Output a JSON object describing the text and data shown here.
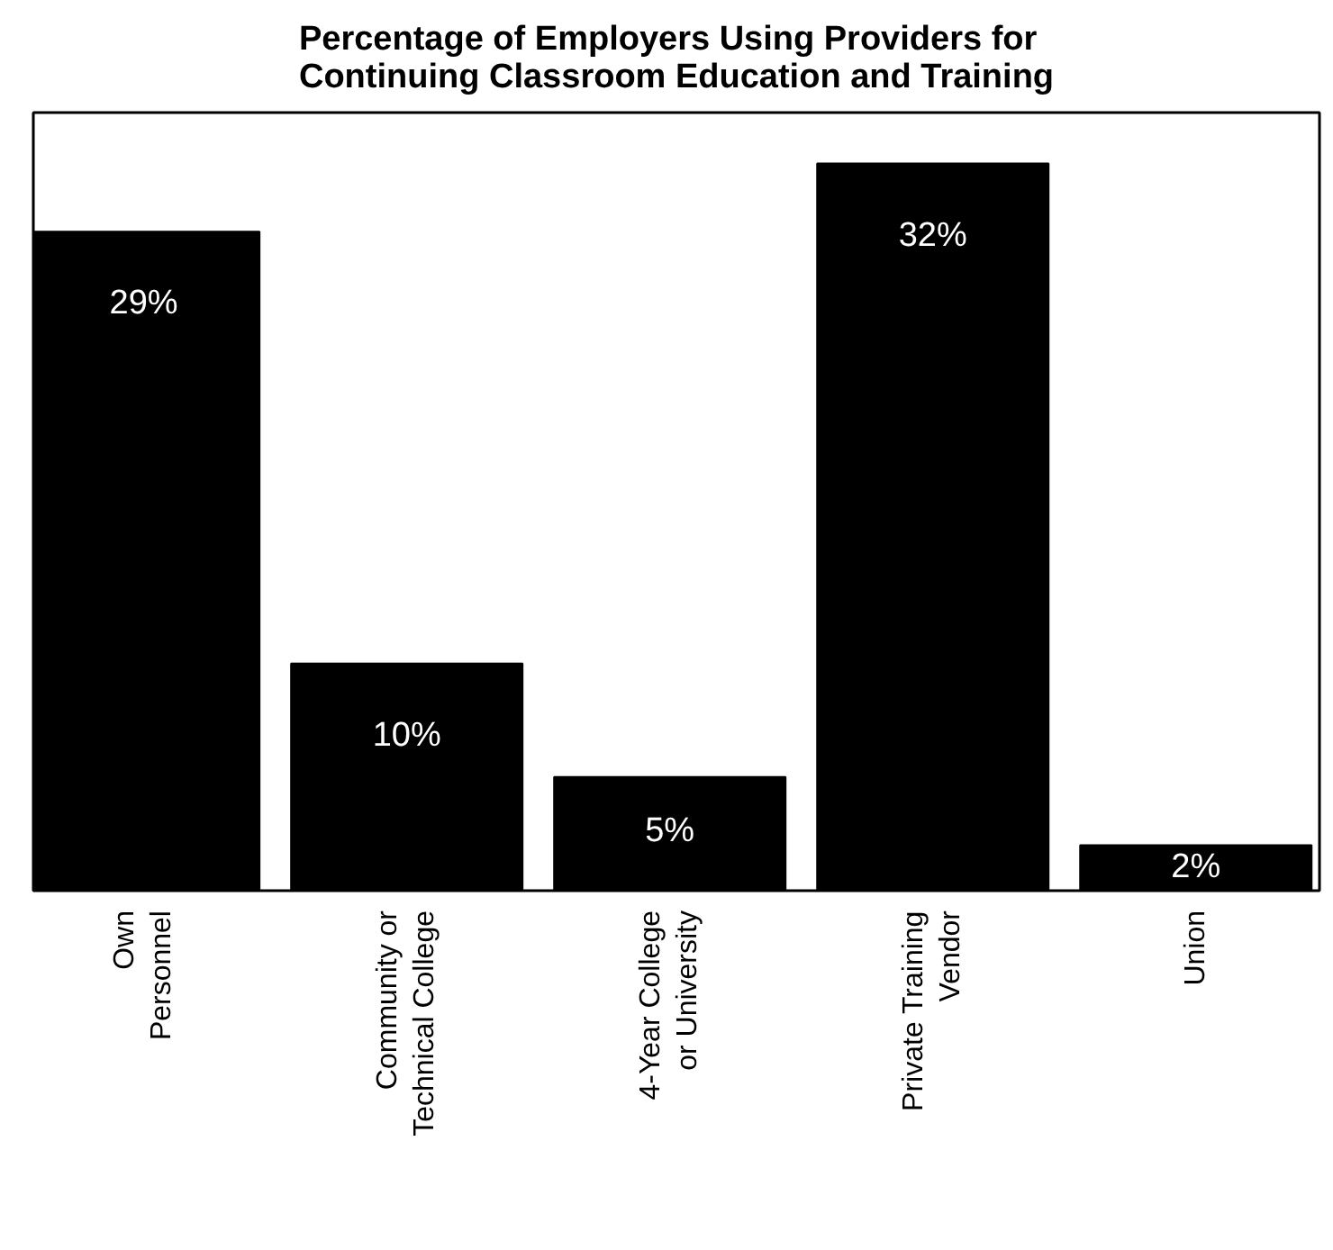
{
  "chart_data": {
    "type": "bar",
    "title": "Percentage of Employers Using Providers for\nContinuing Classroom Education and Training",
    "categories": [
      "Own\nPersonnel",
      "Community or\nTechnical College",
      "4-Year College\nor University",
      "Private Training\nVendor",
      "Union"
    ],
    "values": [
      29,
      10,
      5,
      32,
      2
    ],
    "value_labels": [
      "29%",
      "10%",
      "5%",
      "32%",
      "2%"
    ],
    "color": "#000000",
    "grid": false
  }
}
